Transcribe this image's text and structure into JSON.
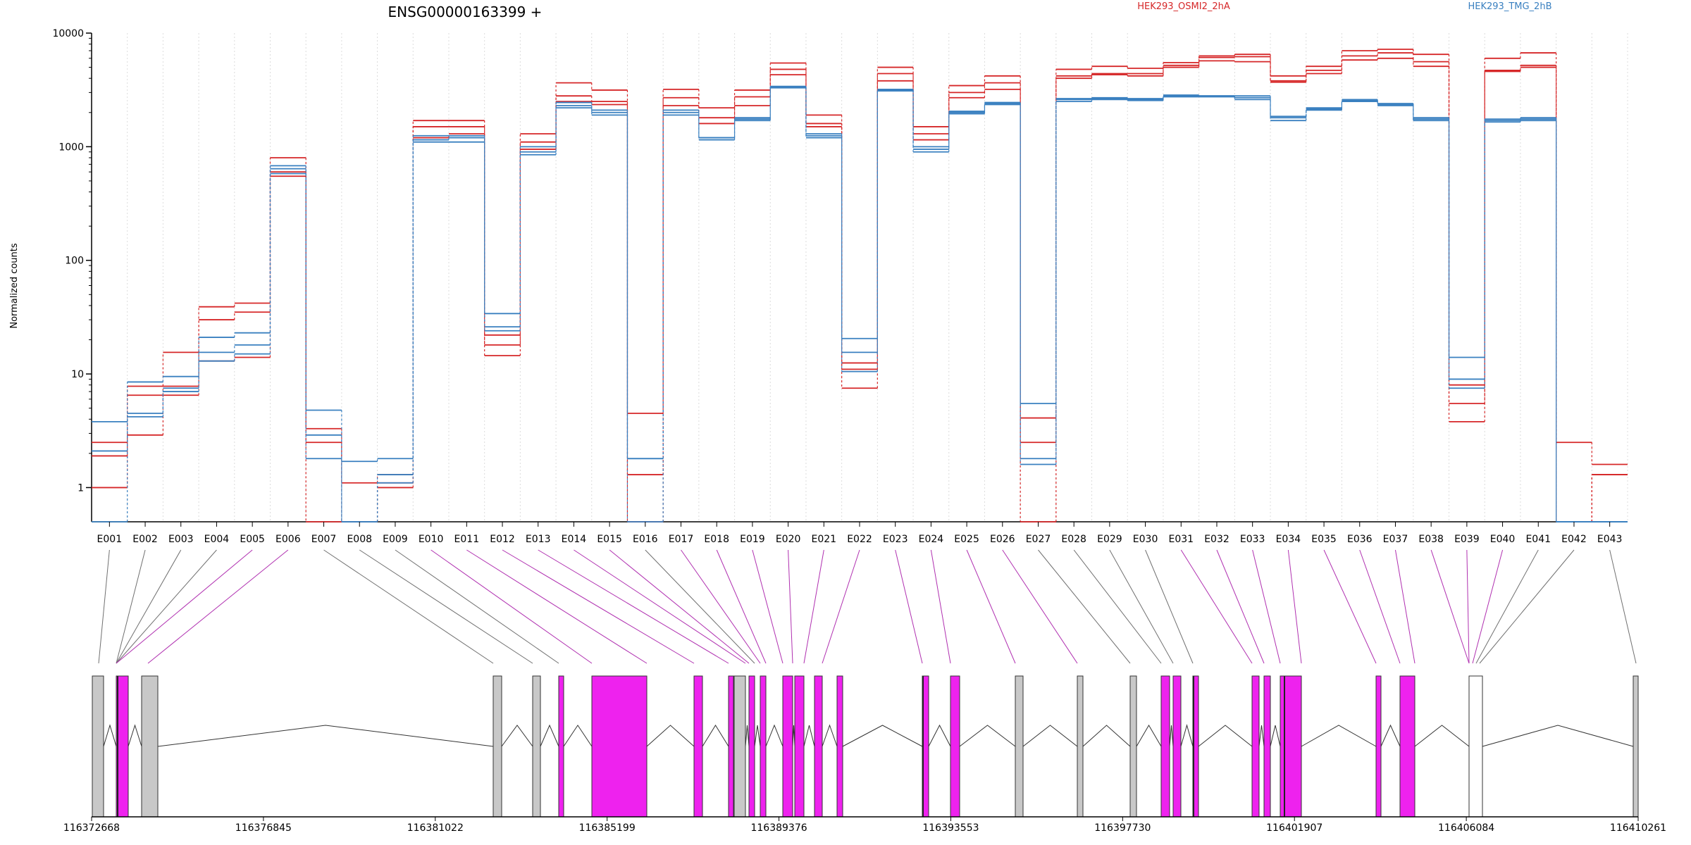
{
  "chart_data": {
    "type": "line",
    "title": "ENSG00000163399 +",
    "ylabel": "Normalized counts",
    "yscale": "log",
    "ylim": [
      0.5,
      10000
    ],
    "yticks": [
      1,
      10,
      100,
      1000,
      10000
    ],
    "ytick_labels": [
      "1",
      "10",
      "100",
      "1000",
      "10000"
    ],
    "categories": [
      "E001",
      "E002",
      "E003",
      "E004",
      "E005",
      "E006",
      "E007",
      "E008",
      "E009",
      "E010",
      "E011",
      "E012",
      "E013",
      "E014",
      "E015",
      "E016",
      "E017",
      "E018",
      "E019",
      "E020",
      "E021",
      "E022",
      "E023",
      "E024",
      "E025",
      "E026",
      "E027",
      "E028",
      "E029",
      "E030",
      "E031",
      "E032",
      "E033",
      "E034",
      "E035",
      "E036",
      "E037",
      "E038",
      "E039",
      "E040",
      "E041",
      "E042",
      "E043"
    ],
    "groups": [
      {
        "name": "HEK293_OSMI2_2hA",
        "color": "#d62728"
      },
      {
        "name": "HEK293_TMG_2hB",
        "color": "#3a80c0"
      }
    ],
    "series": [
      {
        "group": 0,
        "values": [
          2.5,
          7.8,
          15.5,
          39,
          42,
          800,
          3.3,
          1.1,
          1.3,
          1700,
          1700,
          22,
          1300,
          3650,
          3150,
          4.5,
          3200,
          2200,
          3150,
          5450,
          1900,
          12.5,
          5000,
          1500,
          3450,
          4200,
          2.5,
          4800,
          5100,
          4900,
          5500,
          6300,
          6500,
          4200,
          5100,
          7000,
          7200,
          6500,
          8,
          6000,
          6700,
          2.5,
          1.6
        ]
      },
      {
        "group": 0,
        "values": [
          1.9,
          6.5,
          7.8,
          30,
          35,
          600,
          2.5,
          0.5,
          1.1,
          1500,
          1500,
          18,
          1100,
          2800,
          2500,
          1.3,
          2700,
          1800,
          2750,
          4800,
          1600,
          11,
          4400,
          1300,
          3000,
          3650,
          4.1,
          4200,
          4400,
          4400,
          5200,
          6100,
          6200,
          3800,
          4700,
          6300,
          6700,
          5600,
          5.5,
          4700,
          5200,
          0.5,
          1.3
        ]
      },
      {
        "group": 0,
        "values": [
          1,
          2.9,
          6.5,
          13,
          14,
          550,
          0.5,
          0.5,
          1,
          1200,
          1300,
          14.5,
          950,
          2500,
          2350,
          0.5,
          2300,
          1600,
          2300,
          4300,
          1500,
          7.5,
          3800,
          1150,
          2700,
          3200,
          0.5,
          4000,
          4300,
          4200,
          5000,
          5700,
          5600,
          3700,
          4400,
          5800,
          6000,
          5100,
          3.8,
          4600,
          5000,
          0.5,
          1.3
        ]
      },
      {
        "group": 1,
        "values": [
          3.8,
          8.5,
          9.5,
          21,
          23,
          680,
          4.8,
          1.7,
          1.8,
          1250,
          1250,
          34,
          1000,
          2450,
          2100,
          1.8,
          2100,
          1200,
          1800,
          3400,
          1300,
          20.5,
          3200,
          1000,
          2050,
          2450,
          5.5,
          2650,
          2700,
          2650,
          2850,
          2800,
          2800,
          1850,
          2200,
          2600,
          2400,
          1800,
          14,
          1750,
          1800,
          0.5,
          0.5
        ]
      },
      {
        "group": 1,
        "values": [
          2.1,
          4.5,
          7.5,
          15.5,
          18,
          640,
          2.9,
          0.5,
          1.3,
          1150,
          1200,
          24,
          900,
          2300,
          2000,
          1.8,
          2000,
          1200,
          1750,
          3350,
          1250,
          15.5,
          3150,
          950,
          2000,
          2400,
          1.8,
          2600,
          2650,
          2600,
          2800,
          2800,
          2700,
          1800,
          2150,
          2550,
          2350,
          1750,
          9,
          1700,
          1750,
          0.5,
          0.5
        ]
      },
      {
        "group": 1,
        "values": [
          0.5,
          4.2,
          7,
          13,
          15,
          580,
          1.8,
          0.5,
          1.1,
          1100,
          1100,
          26,
          850,
          2200,
          1900,
          0.5,
          1900,
          1150,
          1700,
          3300,
          1200,
          10.5,
          3100,
          900,
          1950,
          2350,
          1.6,
          2500,
          2600,
          2550,
          2750,
          2750,
          2600,
          1700,
          2100,
          2500,
          2300,
          1700,
          7.5,
          1650,
          1700,
          0.5,
          0.5
        ]
      }
    ],
    "genomic_axis": {
      "tick_labels": [
        "116372668",
        "116376845",
        "116381022",
        "116385199",
        "116389376",
        "116393553",
        "116397730",
        "116401907",
        "116406084",
        "116410261"
      ]
    },
    "exon_track": {
      "colors": {
        "exon_dexseq": "#ee22ee",
        "exon_other": "#c8c8c8",
        "exon_blank": "#ffffff"
      },
      "connectors": [
        {
          "exon": "E001",
          "color": "gray"
        },
        {
          "exon": "E002",
          "color": "gray"
        },
        {
          "exon": "E003",
          "color": "gray"
        },
        {
          "exon": "E004",
          "color": "gray"
        },
        {
          "exon": "E005",
          "color": "magenta"
        },
        {
          "exon": "E006",
          "color": "magenta"
        },
        {
          "exon": "E007",
          "color": "gray"
        },
        {
          "exon": "E008",
          "color": "gray"
        },
        {
          "exon": "E009",
          "color": "gray"
        },
        {
          "exon": "E010",
          "color": "magenta"
        },
        {
          "exon": "E011",
          "color": "magenta"
        },
        {
          "exon": "E012",
          "color": "magenta"
        },
        {
          "exon": "E013",
          "color": "magenta"
        },
        {
          "exon": "E014",
          "color": "magenta"
        },
        {
          "exon": "E015",
          "color": "magenta"
        },
        {
          "exon": "E016",
          "color": "gray"
        },
        {
          "exon": "E017",
          "color": "magenta"
        },
        {
          "exon": "E018",
          "color": "magenta"
        },
        {
          "exon": "E019",
          "color": "magenta"
        },
        {
          "exon": "E020",
          "color": "magenta"
        },
        {
          "exon": "E021",
          "color": "magenta"
        },
        {
          "exon": "E022",
          "color": "magenta"
        },
        {
          "exon": "E023",
          "color": "magenta"
        },
        {
          "exon": "E024",
          "color": "magenta"
        },
        {
          "exon": "E025",
          "color": "magenta"
        },
        {
          "exon": "E026",
          "color": "magenta"
        },
        {
          "exon": "E027",
          "color": "gray"
        },
        {
          "exon": "E028",
          "color": "gray"
        },
        {
          "exon": "E029",
          "color": "gray"
        },
        {
          "exon": "E030",
          "color": "gray"
        },
        {
          "exon": "E031",
          "color": "magenta"
        },
        {
          "exon": "E032",
          "color": "magenta"
        },
        {
          "exon": "E033",
          "color": "magenta"
        },
        {
          "exon": "E034",
          "color": "magenta"
        },
        {
          "exon": "E035",
          "color": "magenta"
        },
        {
          "exon": "E036",
          "color": "magenta"
        },
        {
          "exon": "E037",
          "color": "magenta"
        },
        {
          "exon": "E038",
          "color": "magenta"
        },
        {
          "exon": "E039",
          "color": "magenta"
        },
        {
          "exon": "E040",
          "color": "magenta"
        },
        {
          "exon": "E041",
          "color": "gray"
        },
        {
          "exon": "E042",
          "color": "gray"
        },
        {
          "exon": "E043",
          "color": "gray"
        }
      ]
    }
  }
}
